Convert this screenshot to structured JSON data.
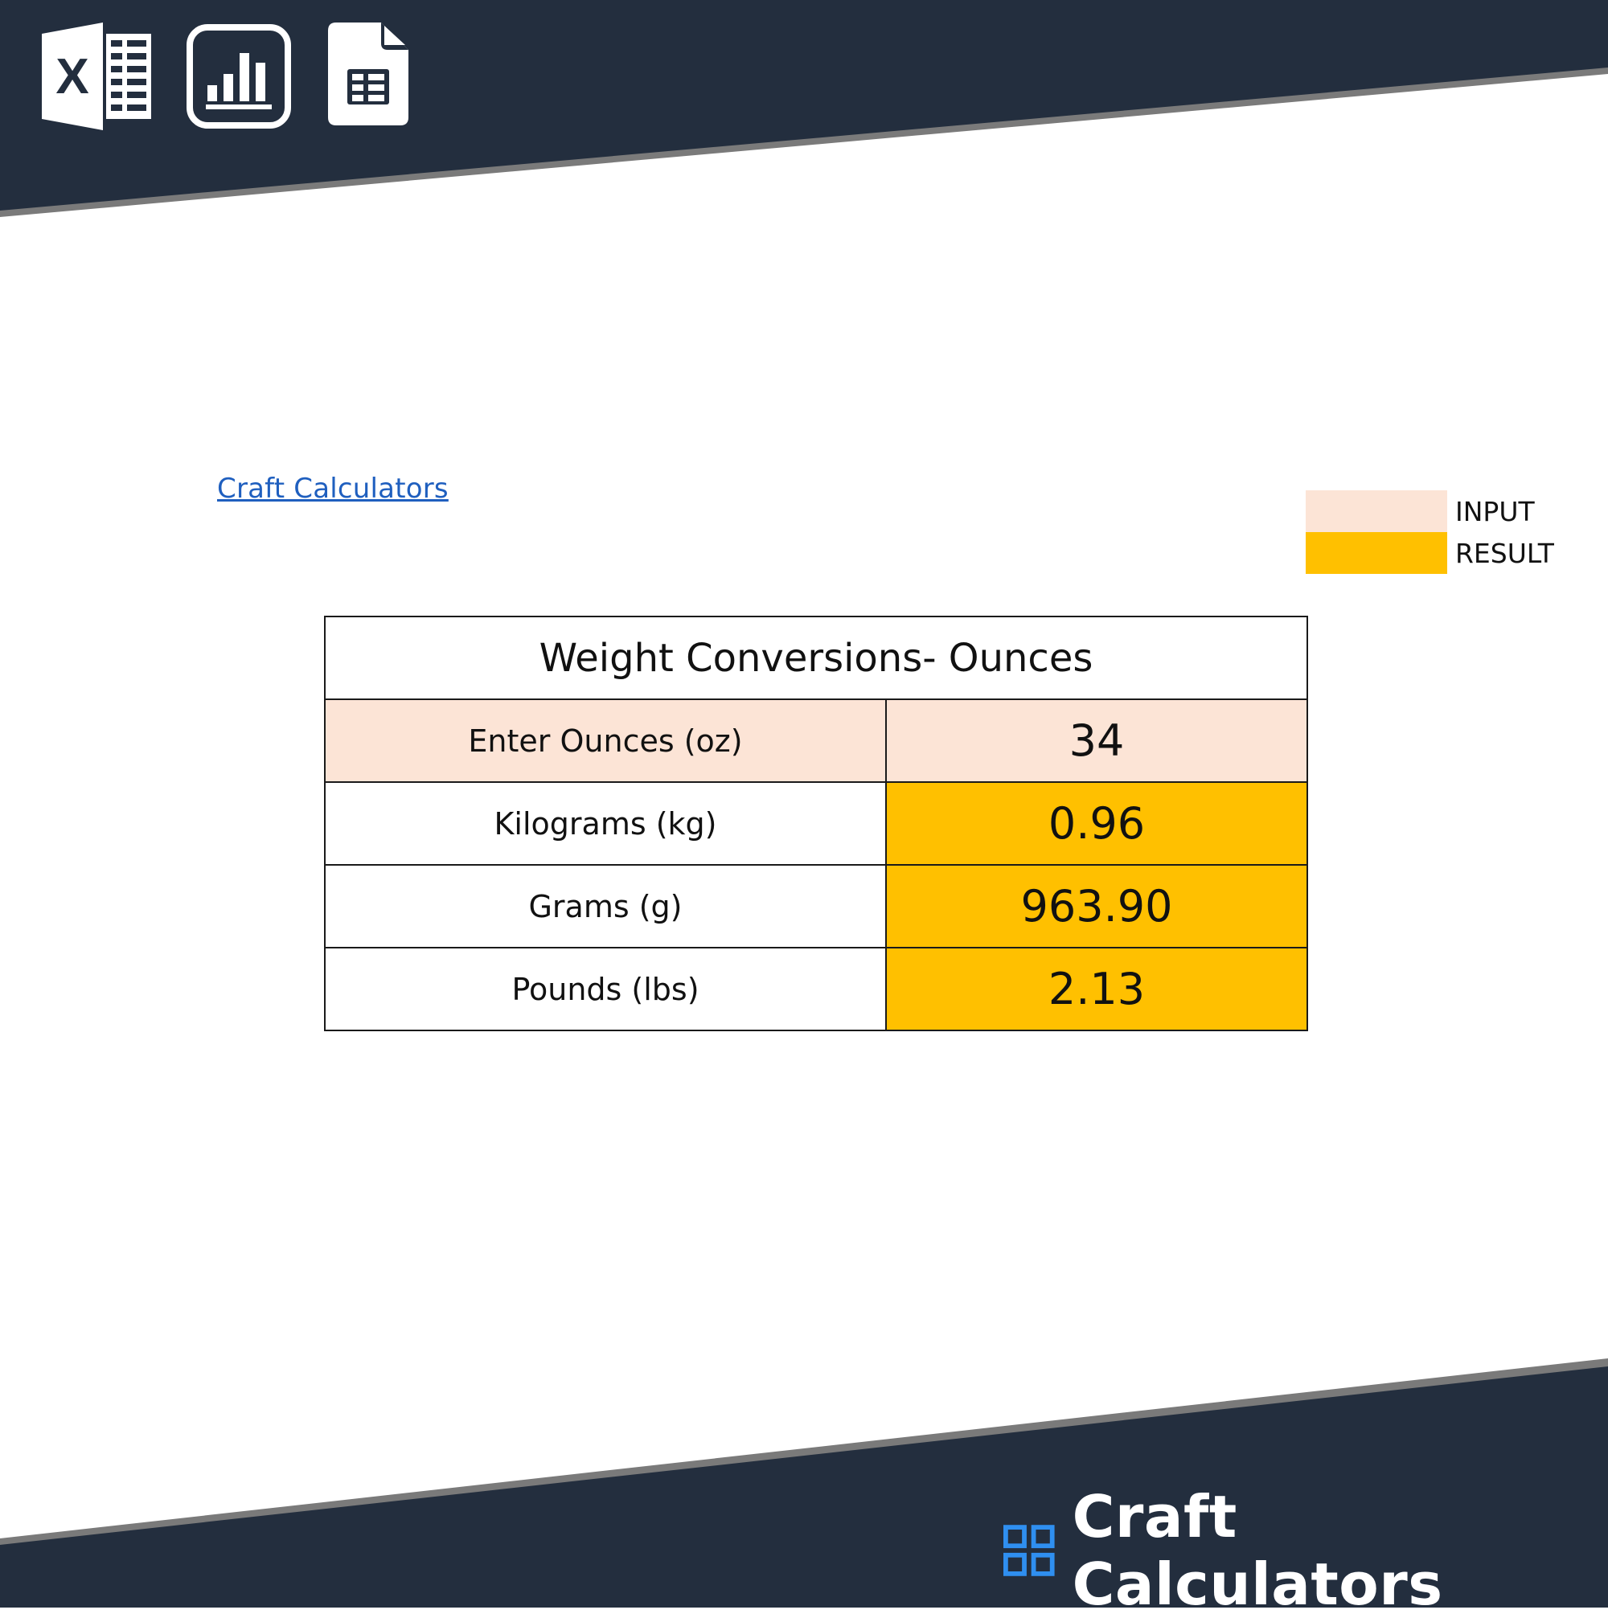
{
  "header": {
    "icons": [
      "excel-icon",
      "chart-icon",
      "sheets-icon"
    ]
  },
  "link": {
    "text": "Craft Calculators"
  },
  "legend": {
    "input_label": "INPUT",
    "result_label": "RESULT",
    "input_color": "#fce4d6",
    "result_color": "#ffc000"
  },
  "table": {
    "title": "Weight Conversions- Ounces",
    "input": {
      "label": "Enter Ounces (oz)",
      "value": "34"
    },
    "results": [
      {
        "label": "Kilograms (kg)",
        "value": "0.96"
      },
      {
        "label": "Grams (g)",
        "value": "963.90"
      },
      {
        "label": "Pounds (lbs)",
        "value": "2.13"
      }
    ]
  },
  "footer": {
    "brand_name": "Craft Calculators",
    "band_color": "#232e3e",
    "accent": "#2f8ff0"
  }
}
